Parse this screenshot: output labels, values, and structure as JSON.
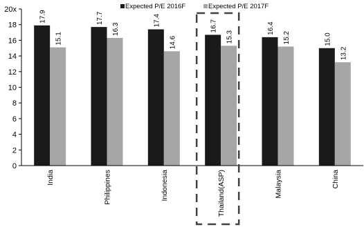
{
  "chart_data": {
    "type": "bar",
    "categories": [
      "India",
      "Philippines",
      "Indonesia",
      "Thailand(ASP)",
      "Malaysia",
      "China"
    ],
    "series": [
      {
        "name": "Expected P/E 2016F",
        "values": [
          17.9,
          17.7,
          17.4,
          16.7,
          16.4,
          15.0
        ],
        "color": "#1a1a1a"
      },
      {
        "name": "Expected P/E 2017F",
        "values": [
          15.1,
          16.3,
          14.6,
          15.3,
          15.2,
          13.2
        ],
        "color": "#a6a6a6"
      }
    ],
    "data_labels": [
      [
        "17.9",
        "17.7",
        "17.4",
        "16.7",
        "16.4",
        "15.0"
      ],
      [
        "15.1",
        "16.3",
        "14.6",
        "15.3",
        "15.2",
        "13.2"
      ]
    ],
    "y_ticks": [
      "0",
      "2",
      "4",
      "6",
      "8",
      "10",
      "12",
      "14",
      "16",
      "18",
      "20x"
    ],
    "ylim": [
      0,
      20
    ],
    "title": "",
    "xlabel": "",
    "ylabel": "",
    "legend_position": "top",
    "grid": false,
    "highlight_category": "Thailand(ASP)"
  }
}
